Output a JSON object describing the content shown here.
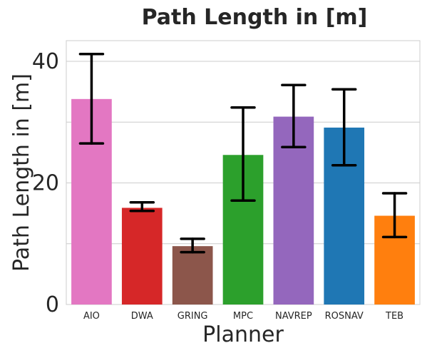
{
  "chart_data": {
    "type": "bar",
    "title": "Path Length in [m]",
    "xlabel": "Planner",
    "ylabel": "Path Length in [m]",
    "categories": [
      "AIO",
      "DWA",
      "GRING",
      "MPC",
      "NAVREP",
      "ROSNAV",
      "TEB"
    ],
    "values": [
      33.8,
      15.9,
      9.6,
      24.6,
      30.9,
      29.1,
      14.6
    ],
    "error_low": [
      26.5,
      15.4,
      8.6,
      17.1,
      25.9,
      22.9,
      11.1
    ],
    "error_high": [
      41.2,
      16.8,
      10.8,
      32.4,
      36.1,
      35.4,
      18.3
    ],
    "colors": [
      "#e377c2",
      "#d62728",
      "#8c564b",
      "#2ca02c",
      "#9467bd",
      "#1f77b4",
      "#ff7f0e"
    ],
    "ylim": [
      0,
      43.4
    ],
    "yticks": [
      0,
      20,
      40
    ],
    "ygrid_lines": [
      0,
      10,
      20,
      30,
      40
    ],
    "grid": true,
    "legend": "none"
  }
}
